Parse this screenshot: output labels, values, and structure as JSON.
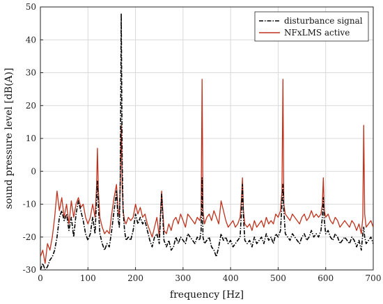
{
  "chart_data": {
    "type": "line",
    "xlabel": "frequency [Hz]",
    "ylabel": "sound pressure level [dB(A)]",
    "xlim": [
      0,
      700
    ],
    "ylim": [
      -30,
      50
    ],
    "xticks": [
      0,
      100,
      200,
      300,
      400,
      500,
      600,
      700
    ],
    "yticks": [
      -30,
      -20,
      -10,
      0,
      10,
      20,
      30,
      40,
      50
    ],
    "grid": true,
    "legend": "top-right",
    "series": [
      {
        "name": "disturbance signal",
        "style": "dash-dot",
        "color": "#000000",
        "x": [
          0,
          5,
          10,
          15,
          20,
          25,
          30,
          35,
          40,
          45,
          50,
          55,
          60,
          65,
          70,
          75,
          80,
          85,
          90,
          95,
          100,
          105,
          110,
          115,
          118,
          120,
          122,
          125,
          130,
          135,
          140,
          145,
          150,
          155,
          160,
          163,
          166,
          168,
          170,
          172,
          174,
          177,
          180,
          185,
          190,
          195,
          200,
          205,
          210,
          215,
          220,
          225,
          230,
          235,
          240,
          245,
          250,
          255,
          260,
          265,
          270,
          275,
          280,
          285,
          290,
          295,
          300,
          305,
          310,
          315,
          320,
          325,
          330,
          335,
          338,
          340,
          342,
          345,
          350,
          355,
          360,
          365,
          370,
          375,
          380,
          385,
          390,
          395,
          400,
          405,
          410,
          415,
          420,
          423,
          425,
          427,
          430,
          435,
          440,
          445,
          450,
          455,
          460,
          465,
          470,
          475,
          480,
          485,
          490,
          495,
          500,
          505,
          508,
          510,
          512,
          515,
          520,
          525,
          530,
          535,
          540,
          545,
          550,
          555,
          560,
          565,
          570,
          575,
          580,
          585,
          590,
          593,
          595,
          597,
          600,
          605,
          610,
          615,
          620,
          625,
          630,
          635,
          640,
          645,
          650,
          655,
          660,
          665,
          670,
          675,
          678,
          680,
          682,
          685,
          690,
          695,
          700
        ],
        "y": [
          -30,
          -28,
          -30,
          -29,
          -27,
          -26,
          -24,
          -20,
          -14,
          -12,
          -15,
          -13,
          -18,
          -14,
          -20,
          -13,
          -9,
          -12,
          -15,
          -19,
          -21,
          -19,
          -14,
          -19,
          -9,
          -3,
          -11,
          -19,
          -22,
          -24,
          -22,
          -23,
          -18,
          -12,
          -6,
          -14,
          -17,
          -3,
          48,
          2,
          -12,
          -18,
          -21,
          -20,
          -21,
          -18,
          -13,
          -16,
          -14,
          -16,
          -15,
          -18,
          -21,
          -23,
          -20,
          -19,
          -22,
          -7,
          -21,
          -23,
          -21,
          -24,
          -23,
          -20,
          -22,
          -20,
          -21,
          -22,
          -19,
          -20,
          -21,
          -22,
          -20,
          -21,
          -18,
          -2,
          -20,
          -22,
          -21,
          -20,
          -23,
          -24,
          -26,
          -23,
          -19,
          -21,
          -20,
          -22,
          -21,
          -23,
          -22,
          -21,
          -20,
          -12,
          -4,
          -14,
          -21,
          -22,
          -21,
          -23,
          -20,
          -22,
          -21,
          -20,
          -22,
          -19,
          -21,
          -20,
          -22,
          -19,
          -20,
          -18,
          -10,
          -4,
          -12,
          -19,
          -20,
          -21,
          -19,
          -20,
          -21,
          -22,
          -20,
          -19,
          -21,
          -20,
          -18,
          -20,
          -19,
          -20,
          -18,
          -14,
          -8,
          -15,
          -19,
          -18,
          -20,
          -21,
          -19,
          -20,
          -22,
          -21,
          -20,
          -21,
          -22,
          -20,
          -21,
          -23,
          -21,
          -24,
          -19,
          -17,
          -20,
          -22,
          -21,
          -20,
          -22
        ]
      },
      {
        "name": "NFxLMS active",
        "style": "solid",
        "color": "#c0311c",
        "x": [
          0,
          5,
          10,
          15,
          20,
          25,
          30,
          35,
          40,
          45,
          50,
          55,
          60,
          65,
          70,
          75,
          80,
          85,
          90,
          95,
          100,
          105,
          110,
          115,
          118,
          120,
          122,
          125,
          130,
          135,
          140,
          145,
          150,
          155,
          160,
          163,
          166,
          168,
          170,
          172,
          174,
          177,
          180,
          185,
          190,
          195,
          200,
          205,
          210,
          215,
          220,
          225,
          230,
          235,
          240,
          245,
          250,
          255,
          260,
          265,
          270,
          275,
          280,
          285,
          290,
          295,
          300,
          305,
          310,
          315,
          320,
          325,
          330,
          335,
          338,
          340,
          342,
          345,
          350,
          355,
          360,
          365,
          370,
          375,
          380,
          385,
          390,
          395,
          400,
          405,
          410,
          415,
          420,
          423,
          425,
          427,
          430,
          435,
          440,
          445,
          450,
          455,
          460,
          465,
          470,
          475,
          480,
          485,
          490,
          495,
          500,
          505,
          508,
          510,
          512,
          515,
          520,
          525,
          530,
          535,
          540,
          545,
          550,
          555,
          560,
          565,
          570,
          575,
          580,
          585,
          590,
          593,
          595,
          597,
          600,
          605,
          610,
          615,
          620,
          625,
          630,
          635,
          640,
          645,
          650,
          655,
          660,
          665,
          670,
          675,
          678,
          680,
          682,
          685,
          690,
          695,
          700
        ],
        "y": [
          -26,
          -24,
          -28,
          -22,
          -24,
          -20,
          -14,
          -6,
          -12,
          -8,
          -14,
          -10,
          -16,
          -9,
          -14,
          -10,
          -8,
          -11,
          -10,
          -14,
          -16,
          -14,
          -10,
          -14,
          -5,
          7,
          -6,
          -14,
          -17,
          -19,
          -18,
          -19,
          -13,
          -8,
          -4,
          -11,
          -14,
          -2,
          14,
          -5,
          -12,
          -15,
          -16,
          -14,
          -15,
          -14,
          -10,
          -13,
          -11,
          -14,
          -13,
          -16,
          -18,
          -20,
          -17,
          -14,
          -20,
          -6,
          -18,
          -19,
          -16,
          -18,
          -15,
          -14,
          -16,
          -13,
          -15,
          -17,
          -13,
          -14,
          -15,
          -16,
          -14,
          -15,
          -13,
          28,
          -12,
          -16,
          -14,
          -13,
          -15,
          -12,
          -14,
          -16,
          -9,
          -12,
          -15,
          -17,
          -16,
          -15,
          -17,
          -16,
          -14,
          -8,
          -2,
          -12,
          -16,
          -17,
          -16,
          -18,
          -15,
          -17,
          -16,
          -15,
          -17,
          -14,
          -16,
          -15,
          -16,
          -13,
          -14,
          -12,
          -6,
          28,
          -10,
          -13,
          -14,
          -15,
          -13,
          -14,
          -15,
          -16,
          -14,
          -13,
          -15,
          -14,
          -12,
          -14,
          -13,
          -14,
          -13,
          -10,
          -2,
          -12,
          -14,
          -13,
          -15,
          -16,
          -14,
          -15,
          -17,
          -16,
          -15,
          -16,
          -17,
          -15,
          -16,
          -18,
          -16,
          -19,
          -14,
          14,
          -13,
          -17,
          -16,
          -15,
          -17
        ]
      }
    ]
  }
}
